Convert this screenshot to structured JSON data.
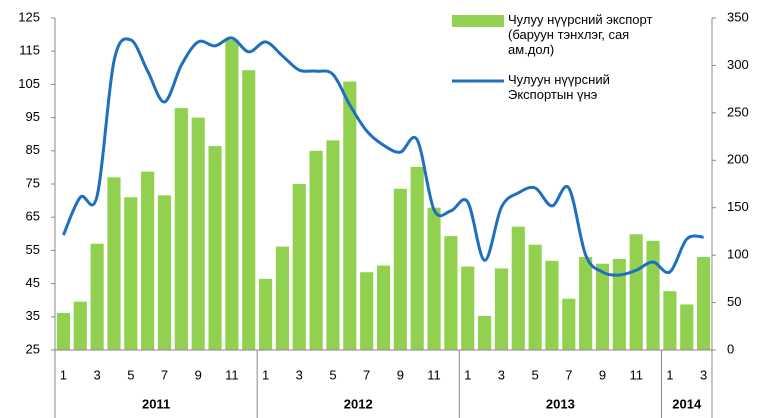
{
  "chart_data": {
    "type": "bar_line",
    "categories": [
      "1",
      null,
      "3",
      null,
      "5",
      null,
      "7",
      null,
      "9",
      null,
      "11",
      null,
      "1",
      null,
      "3",
      null,
      "5",
      null,
      "7",
      null,
      "9",
      null,
      "11",
      null,
      "1",
      null,
      "3",
      null,
      "5",
      null,
      "7",
      null,
      "9",
      null,
      "11",
      null,
      "1",
      null,
      "3"
    ],
    "years": [
      "2011",
      "2012",
      "2013",
      "2014"
    ],
    "series": [
      {
        "name": "Чулуу нүүрсний экспорт (баруун тэнхлэг, сая ам.дол)",
        "color": "#92d050",
        "axis": "y2",
        "kind": "bar",
        "values": [
          39,
          51,
          112,
          182,
          161,
          188,
          163,
          255,
          245,
          215,
          327,
          295,
          75,
          109,
          175,
          210,
          221,
          283,
          82,
          89,
          170,
          193,
          150,
          120,
          88,
          36,
          86,
          130,
          111,
          94,
          54,
          98,
          91,
          96,
          122,
          115,
          62,
          48,
          98
        ]
      },
      {
        "name": "Чулуун нүүрсний Экспортын үнэ",
        "color": "#1f6fbf",
        "kind": "line",
        "values": [
          59.6,
          71,
          71.4,
          112,
          118.4,
          109,
          99.7,
          110.8,
          117.8,
          116.6,
          119,
          114.8,
          117.8,
          113.6,
          109.3,
          109,
          108,
          98.8,
          91,
          86.7,
          84.6,
          88.3,
          67.2,
          66.9,
          69.6,
          52,
          68,
          72.3,
          73.8,
          68.4,
          73.8,
          53.6,
          48.5,
          47.6,
          49,
          51.5,
          48.5,
          58.4,
          59
        ]
      }
    ],
    "ylim": [
      25,
      125
    ],
    "yticks": [
      25,
      35,
      45,
      55,
      65,
      75,
      85,
      95,
      105,
      115,
      125
    ],
    "y2lim": [
      0,
      350
    ],
    "y2ticks": [
      0,
      50,
      100,
      150,
      200,
      250,
      300,
      350
    ],
    "legend": "top-right"
  }
}
